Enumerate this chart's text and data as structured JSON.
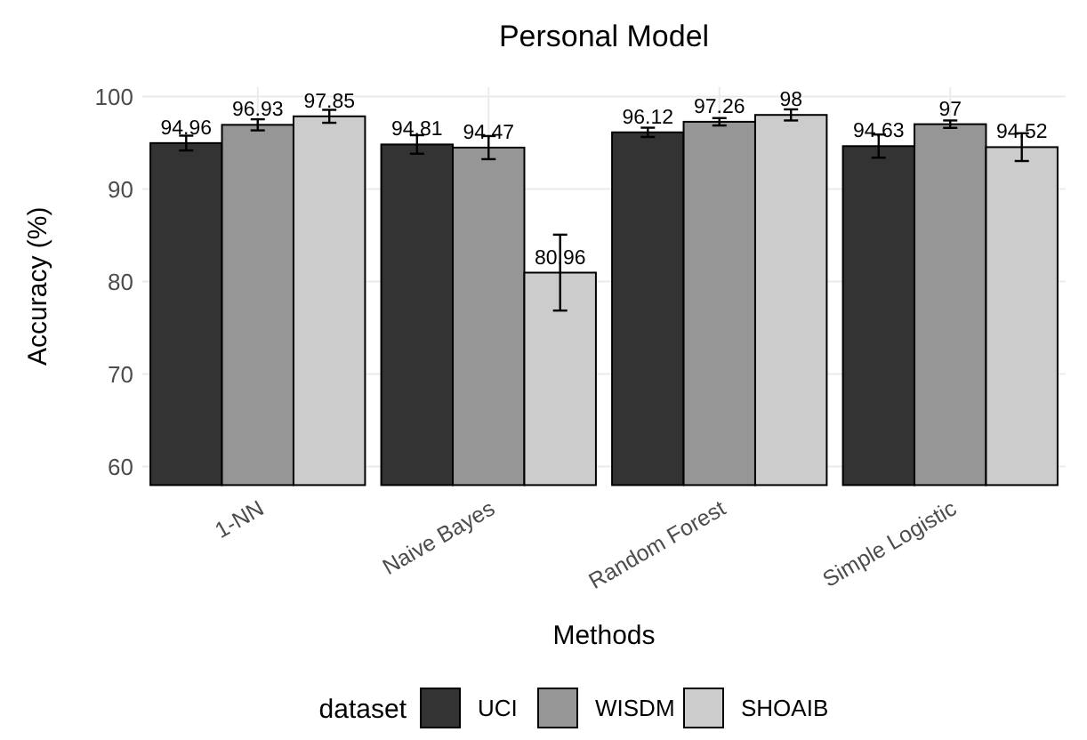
{
  "chart_data": {
    "type": "bar",
    "title": "Personal Model",
    "xlabel": "Methods",
    "ylabel": "Accuracy (%)",
    "legend_title": "dataset",
    "categories": [
      "1-NN",
      "Naive Bayes",
      "Random Forest",
      "Simple Logistic"
    ],
    "series": [
      {
        "name": "UCI",
        "color": "#333333",
        "values": [
          94.96,
          94.81,
          96.12,
          94.63
        ],
        "errors": [
          0.8,
          1.0,
          0.5,
          1.25
        ]
      },
      {
        "name": "WISDM",
        "color": "#969696",
        "values": [
          96.93,
          94.47,
          97.26,
          97
        ],
        "errors": [
          0.6,
          1.25,
          0.4,
          0.4
        ]
      },
      {
        "name": "SHOAIB",
        "color": "#cccccc",
        "values": [
          97.85,
          80.96,
          98,
          94.52
        ],
        "errors": [
          0.7,
          4.1,
          0.6,
          1.5
        ]
      }
    ],
    "ylim": [
      58,
      101
    ],
    "yticks": [
      60,
      70,
      80,
      90,
      100
    ],
    "grid": true,
    "legend": "bottom",
    "data_labels": true
  }
}
